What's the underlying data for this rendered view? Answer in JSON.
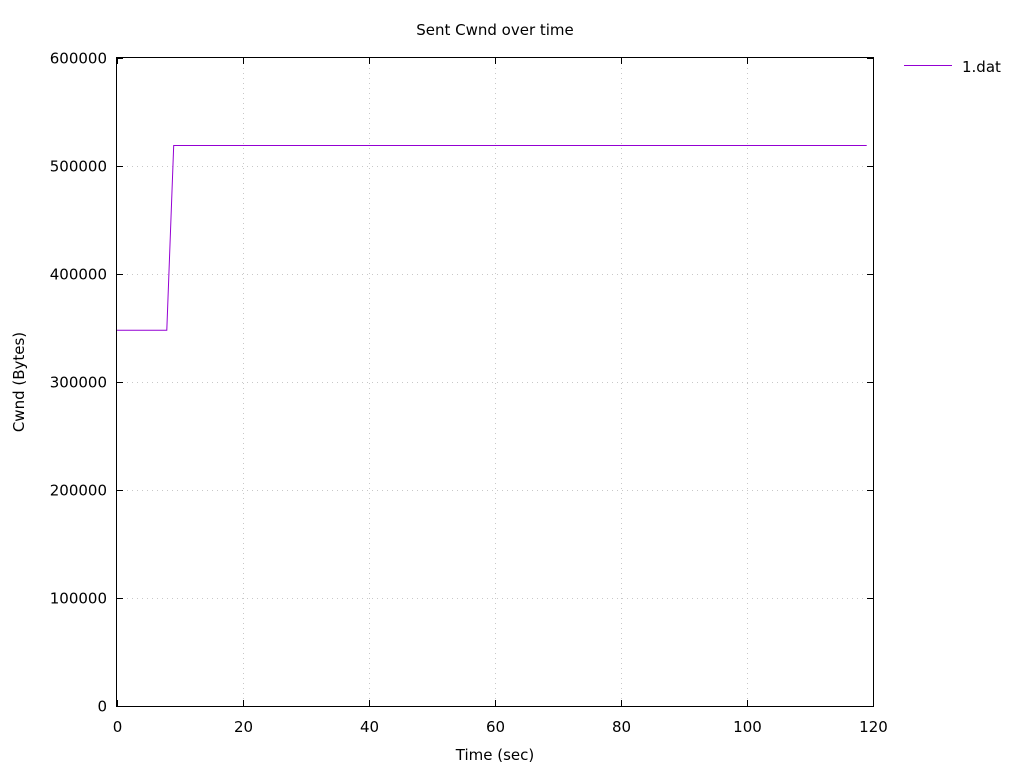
{
  "chart_data": {
    "type": "line",
    "title": "Sent Cwnd over time",
    "xlabel": "Time (sec)",
    "ylabel": "Cwnd (Bytes)",
    "xlim": [
      0,
      120
    ],
    "ylim": [
      0,
      600000
    ],
    "x_ticks": [
      0,
      20,
      40,
      60,
      80,
      100,
      120
    ],
    "y_ticks": [
      0,
      100000,
      200000,
      300000,
      400000,
      500000,
      600000
    ],
    "grid": true,
    "legend_position": "top-right-outside",
    "series": [
      {
        "name": "1.dat",
        "color": "#9400d3",
        "points": [
          [
            0,
            348000
          ],
          [
            7.9,
            348000
          ],
          [
            9.0,
            519000
          ],
          [
            119,
            519000
          ]
        ]
      }
    ]
  }
}
